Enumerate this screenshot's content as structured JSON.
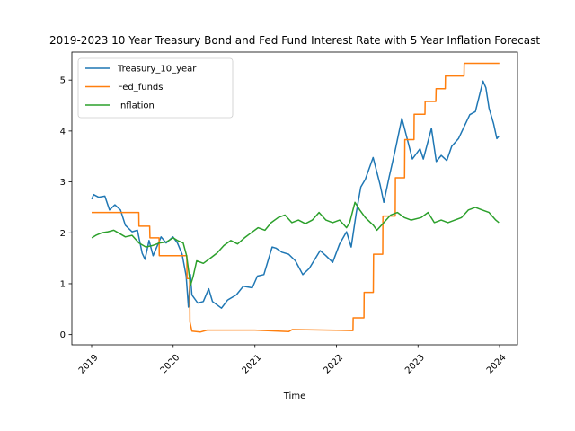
{
  "chart_data": {
    "type": "line",
    "title": "2019-2023 10 Year Treasury Bond and Fed Fund Interest Rate with 5 Year Inflation Forecast",
    "xlabel": "Time",
    "ylabel": "",
    "xlim": [
      "2019-01-01",
      "2024-01-01"
    ],
    "ylim": [
      -0.2,
      5.55
    ],
    "x_ticks": [
      "2019",
      "2020",
      "2021",
      "2022",
      "2023",
      "2024"
    ],
    "y_ticks": [
      0,
      1,
      2,
      3,
      4,
      5
    ],
    "grid": false,
    "legend_position": "upper left",
    "series": [
      {
        "name": "Treasury_10_year",
        "color": "#1f77b4",
        "points": [
          [
            "2019-01-02",
            2.66
          ],
          [
            "2019-01-10",
            2.75
          ],
          [
            "2019-02-01",
            2.7
          ],
          [
            "2019-03-01",
            2.72
          ],
          [
            "2019-03-22",
            2.45
          ],
          [
            "2019-04-15",
            2.55
          ],
          [
            "2019-05-10",
            2.45
          ],
          [
            "2019-06-01",
            2.15
          ],
          [
            "2019-07-01",
            2.02
          ],
          [
            "2019-07-25",
            2.05
          ],
          [
            "2019-08-15",
            1.6
          ],
          [
            "2019-08-28",
            1.48
          ],
          [
            "2019-09-15",
            1.85
          ],
          [
            "2019-10-03",
            1.55
          ],
          [
            "2019-11-08",
            1.92
          ],
          [
            "2019-12-01",
            1.8
          ],
          [
            "2019-12-31",
            1.92
          ],
          [
            "2020-01-20",
            1.8
          ],
          [
            "2020-02-10",
            1.58
          ],
          [
            "2020-02-28",
            1.15
          ],
          [
            "2020-03-09",
            0.54
          ],
          [
            "2020-03-18",
            1.18
          ],
          [
            "2020-03-25",
            0.78
          ],
          [
            "2020-04-20",
            0.62
          ],
          [
            "2020-05-15",
            0.65
          ],
          [
            "2020-06-08",
            0.9
          ],
          [
            "2020-06-25",
            0.65
          ],
          [
            "2020-08-04",
            0.52
          ],
          [
            "2020-09-01",
            0.68
          ],
          [
            "2020-10-10",
            0.78
          ],
          [
            "2020-11-10",
            0.95
          ],
          [
            "2020-12-20",
            0.92
          ],
          [
            "2021-01-12",
            1.15
          ],
          [
            "2021-02-10",
            1.18
          ],
          [
            "2021-03-19",
            1.72
          ],
          [
            "2021-04-05",
            1.7
          ],
          [
            "2021-05-01",
            1.62
          ],
          [
            "2021-06-01",
            1.58
          ],
          [
            "2021-07-01",
            1.45
          ],
          [
            "2021-08-03",
            1.18
          ],
          [
            "2021-09-01",
            1.3
          ],
          [
            "2021-10-20",
            1.65
          ],
          [
            "2021-11-15",
            1.55
          ],
          [
            "2021-12-15",
            1.42
          ],
          [
            "2022-01-15",
            1.78
          ],
          [
            "2022-02-15",
            2.02
          ],
          [
            "2022-03-08",
            1.72
          ],
          [
            "2022-03-31",
            2.4
          ],
          [
            "2022-04-20",
            2.9
          ],
          [
            "2022-05-10",
            3.05
          ],
          [
            "2022-06-14",
            3.48
          ],
          [
            "2022-07-15",
            2.95
          ],
          [
            "2022-08-01",
            2.6
          ],
          [
            "2022-08-25",
            3.1
          ],
          [
            "2022-09-20",
            3.6
          ],
          [
            "2022-10-21",
            4.25
          ],
          [
            "2022-11-15",
            3.82
          ],
          [
            "2022-12-07",
            3.45
          ],
          [
            "2023-01-10",
            3.65
          ],
          [
            "2023-01-25",
            3.45
          ],
          [
            "2023-03-02",
            4.05
          ],
          [
            "2023-03-24",
            3.4
          ],
          [
            "2023-04-15",
            3.52
          ],
          [
            "2023-05-10",
            3.42
          ],
          [
            "2023-06-01",
            3.7
          ],
          [
            "2023-07-01",
            3.85
          ],
          [
            "2023-08-21",
            4.32
          ],
          [
            "2023-09-15",
            4.38
          ],
          [
            "2023-10-19",
            4.98
          ],
          [
            "2023-11-01",
            4.85
          ],
          [
            "2023-11-15",
            4.45
          ],
          [
            "2023-12-05",
            4.15
          ],
          [
            "2023-12-20",
            3.85
          ],
          [
            "2023-12-29",
            3.9
          ]
        ]
      },
      {
        "name": "Fed_funds",
        "color": "#ff7f0e",
        "points": [
          [
            "2019-01-01",
            2.4
          ],
          [
            "2019-07-31",
            2.4
          ],
          [
            "2019-08-01",
            2.13
          ],
          [
            "2019-09-18",
            2.13
          ],
          [
            "2019-09-19",
            1.9
          ],
          [
            "2019-10-30",
            1.9
          ],
          [
            "2019-10-31",
            1.55
          ],
          [
            "2020-03-02",
            1.55
          ],
          [
            "2020-03-03",
            1.1
          ],
          [
            "2020-03-15",
            1.1
          ],
          [
            "2020-03-16",
            0.25
          ],
          [
            "2020-03-25",
            0.07
          ],
          [
            "2020-05-01",
            0.05
          ],
          [
            "2020-06-01",
            0.09
          ],
          [
            "2020-12-31",
            0.09
          ],
          [
            "2021-06-01",
            0.06
          ],
          [
            "2021-06-17",
            0.1
          ],
          [
            "2022-03-16",
            0.08
          ],
          [
            "2022-03-17",
            0.33
          ],
          [
            "2022-05-04",
            0.33
          ],
          [
            "2022-05-05",
            0.83
          ],
          [
            "2022-06-15",
            0.83
          ],
          [
            "2022-06-16",
            1.58
          ],
          [
            "2022-07-27",
            1.58
          ],
          [
            "2022-07-28",
            2.33
          ],
          [
            "2022-09-21",
            2.33
          ],
          [
            "2022-09-22",
            3.08
          ],
          [
            "2022-11-02",
            3.08
          ],
          [
            "2022-11-03",
            3.83
          ],
          [
            "2022-12-14",
            3.83
          ],
          [
            "2022-12-15",
            4.33
          ],
          [
            "2023-02-01",
            4.33
          ],
          [
            "2023-02-02",
            4.58
          ],
          [
            "2023-03-22",
            4.58
          ],
          [
            "2023-03-23",
            4.83
          ],
          [
            "2023-05-03",
            4.83
          ],
          [
            "2023-05-04",
            5.08
          ],
          [
            "2023-07-26",
            5.08
          ],
          [
            "2023-07-27",
            5.33
          ],
          [
            "2023-12-31",
            5.33
          ]
        ]
      },
      {
        "name": "Inflation",
        "color": "#2ca02c",
        "points": [
          [
            "2019-01-02",
            1.9
          ],
          [
            "2019-01-20",
            1.95
          ],
          [
            "2019-02-15",
            2.0
          ],
          [
            "2019-03-15",
            2.02
          ],
          [
            "2019-04-10",
            2.05
          ],
          [
            "2019-05-01",
            2.0
          ],
          [
            "2019-06-01",
            1.92
          ],
          [
            "2019-07-01",
            1.95
          ],
          [
            "2019-08-01",
            1.8
          ],
          [
            "2019-09-01",
            1.72
          ],
          [
            "2019-10-01",
            1.75
          ],
          [
            "2019-11-01",
            1.8
          ],
          [
            "2019-12-01",
            1.82
          ],
          [
            "2020-01-01",
            1.9
          ],
          [
            "2020-01-20",
            1.85
          ],
          [
            "2020-02-15",
            1.8
          ],
          [
            "2020-03-01",
            1.55
          ],
          [
            "2020-03-19",
            0.97
          ],
          [
            "2020-03-31",
            1.15
          ],
          [
            "2020-04-15",
            1.45
          ],
          [
            "2020-05-15",
            1.4
          ],
          [
            "2020-06-15",
            1.5
          ],
          [
            "2020-07-15",
            1.6
          ],
          [
            "2020-08-15",
            1.75
          ],
          [
            "2020-09-15",
            1.85
          ],
          [
            "2020-10-15",
            1.78
          ],
          [
            "2020-11-15",
            1.9
          ],
          [
            "2020-12-15",
            2.0
          ],
          [
            "2021-01-15",
            2.1
          ],
          [
            "2021-02-15",
            2.05
          ],
          [
            "2021-03-15",
            2.2
          ],
          [
            "2021-04-15",
            2.3
          ],
          [
            "2021-05-15",
            2.35
          ],
          [
            "2021-06-15",
            2.2
          ],
          [
            "2021-07-15",
            2.25
          ],
          [
            "2021-08-15",
            2.18
          ],
          [
            "2021-09-15",
            2.25
          ],
          [
            "2021-10-15",
            2.4
          ],
          [
            "2021-11-15",
            2.25
          ],
          [
            "2021-12-15",
            2.2
          ],
          [
            "2022-01-15",
            2.25
          ],
          [
            "2022-02-15",
            2.1
          ],
          [
            "2022-03-01",
            2.2
          ],
          [
            "2022-03-25",
            2.6
          ],
          [
            "2022-04-15",
            2.45
          ],
          [
            "2022-05-10",
            2.3
          ],
          [
            "2022-06-15",
            2.15
          ],
          [
            "2022-07-01",
            2.05
          ],
          [
            "2022-08-01",
            2.2
          ],
          [
            "2022-09-01",
            2.35
          ],
          [
            "2022-10-01",
            2.4
          ],
          [
            "2022-11-01",
            2.3
          ],
          [
            "2022-12-01",
            2.25
          ],
          [
            "2023-01-15",
            2.3
          ],
          [
            "2023-02-15",
            2.4
          ],
          [
            "2023-03-15",
            2.2
          ],
          [
            "2023-04-15",
            2.25
          ],
          [
            "2023-05-15",
            2.2
          ],
          [
            "2023-06-15",
            2.25
          ],
          [
            "2023-07-15",
            2.3
          ],
          [
            "2023-08-15",
            2.45
          ],
          [
            "2023-09-15",
            2.5
          ],
          [
            "2023-10-15",
            2.45
          ],
          [
            "2023-11-15",
            2.4
          ],
          [
            "2023-12-15",
            2.25
          ],
          [
            "2023-12-29",
            2.2
          ]
        ]
      }
    ]
  }
}
